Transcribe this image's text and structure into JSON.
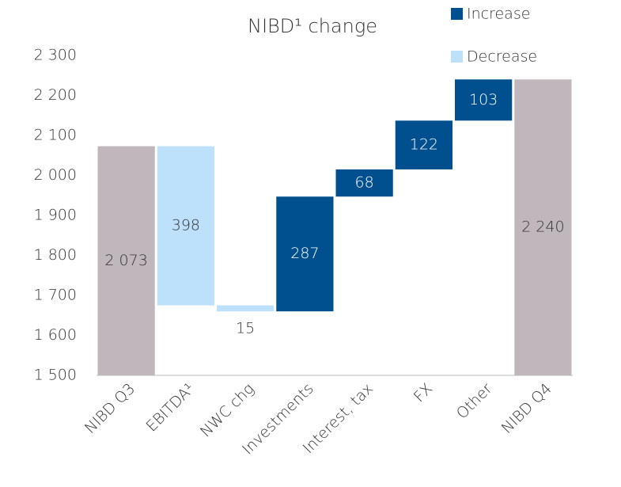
{
  "chart_data": {
    "type": "waterfall",
    "title": "NIBD¹ change",
    "categories": [
      "NIBD Q3",
      "EBITDA¹",
      "NWC chg",
      "Investments",
      "Interest, tax",
      "FX",
      "Other",
      "NIBD Q4"
    ],
    "values": [
      2073,
      -398,
      -15,
      287,
      68,
      122,
      103,
      2240
    ],
    "value_labels": [
      "2 073",
      "398",
      "15",
      "287",
      "68",
      "122",
      "103",
      "2 240"
    ],
    "legend": [
      {
        "name": "Increase",
        "color": "#00508f"
      },
      {
        "name": "Decrease",
        "color": "#bde0fb"
      }
    ],
    "total_color": "#c0b7bd",
    "ylim": [
      1500,
      2300
    ],
    "yticks": [
      {
        "value": 1500,
        "label": "1 500"
      },
      {
        "value": 1600,
        "label": "1 600"
      },
      {
        "value": 1700,
        "label": "1 700"
      },
      {
        "value": 1800,
        "label": "1 800"
      },
      {
        "value": 1900,
        "label": "1 900"
      },
      {
        "value": 2000,
        "label": "2 000"
      },
      {
        "value": 2100,
        "label": "2 100"
      },
      {
        "value": 2200,
        "label": "2 200"
      },
      {
        "value": 2300,
        "label": "2 300"
      }
    ],
    "grid": false
  }
}
